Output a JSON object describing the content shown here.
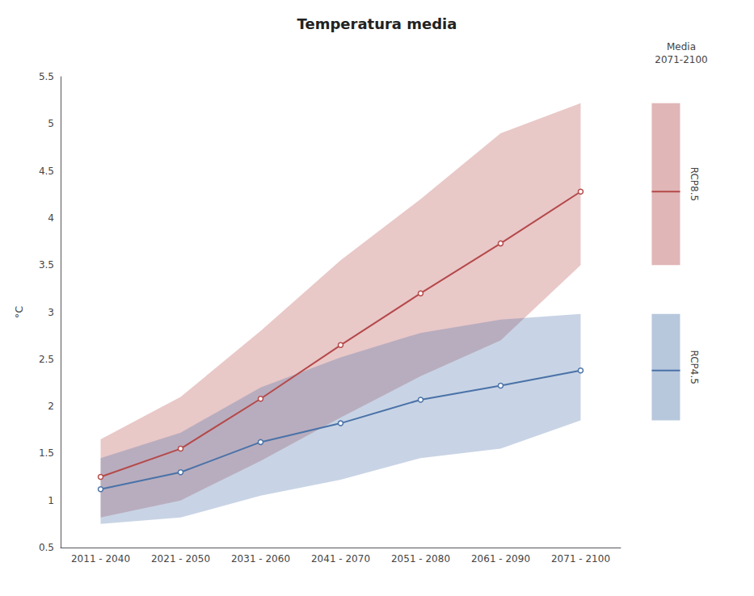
{
  "chart_data": {
    "type": "line",
    "title": "Temperatura media",
    "ylabel": "°C",
    "categories": [
      "2011 - 2040",
      "2021 - 2050",
      "2031 - 2060",
      "2041 - 2070",
      "2051 - 2080",
      "2061 - 2090",
      "2071 - 2100"
    ],
    "ylim": [
      0.5,
      5.5
    ],
    "yticks": [
      0.5,
      1,
      1.5,
      2,
      2.5,
      3,
      3.5,
      4,
      4.5,
      5,
      5.5
    ],
    "grid": false,
    "legend": "right",
    "legend_title": [
      "Media",
      "2071-2100"
    ],
    "marker": "circle",
    "series": [
      {
        "name": "RCP8.5",
        "color": "#b5494a",
        "values": [
          1.25,
          1.55,
          2.08,
          2.65,
          3.2,
          3.73,
          4.28
        ],
        "low": [
          0.82,
          1.0,
          1.42,
          1.88,
          2.32,
          2.7,
          3.5
        ],
        "high": [
          1.65,
          2.1,
          2.8,
          3.55,
          4.2,
          4.9,
          5.22
        ]
      },
      {
        "name": "RCP4.5",
        "color": "#4a72a8",
        "values": [
          1.12,
          1.3,
          1.62,
          1.82,
          2.07,
          2.22,
          2.38
        ],
        "low": [
          0.75,
          0.82,
          1.05,
          1.22,
          1.45,
          1.55,
          1.85
        ],
        "high": [
          1.45,
          1.72,
          2.2,
          2.52,
          2.78,
          2.92,
          2.98
        ]
      }
    ]
  }
}
